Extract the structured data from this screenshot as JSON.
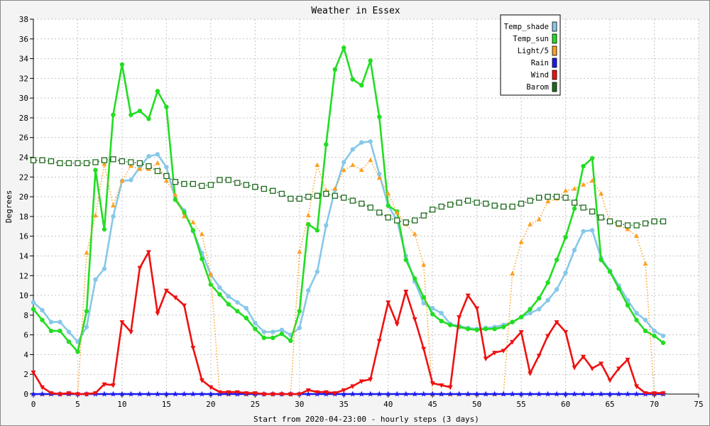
{
  "chart_data": {
    "type": "line",
    "title": "Weather in Essex",
    "xlabel": "Start from 2020-04-23:00 - hourly steps (3 days)",
    "ylabel": "Degrees",
    "xlim": [
      0,
      75
    ],
    "ylim": [
      0,
      38
    ],
    "xticks": [
      0,
      5,
      10,
      15,
      20,
      25,
      30,
      35,
      40,
      45,
      50,
      55,
      60,
      65,
      70,
      75
    ],
    "yticks": [
      0,
      2,
      4,
      6,
      8,
      10,
      12,
      14,
      16,
      18,
      20,
      22,
      24,
      26,
      28,
      30,
      32,
      34,
      36,
      38
    ],
    "grid": true,
    "legend_position": "top-right",
    "x": [
      0,
      1,
      2,
      3,
      4,
      5,
      6,
      7,
      8,
      9,
      10,
      11,
      12,
      13,
      14,
      15,
      16,
      17,
      18,
      19,
      20,
      21,
      22,
      23,
      24,
      25,
      26,
      27,
      28,
      29,
      30,
      31,
      32,
      33,
      34,
      35,
      36,
      37,
      38,
      39,
      40,
      41,
      42,
      43,
      44,
      45,
      46,
      47,
      48,
      49,
      50,
      51,
      52,
      53,
      54,
      55,
      56,
      57,
      58,
      59,
      60,
      61,
      62,
      63,
      64,
      65,
      66,
      67,
      68,
      69,
      70,
      71
    ],
    "series": [
      {
        "name": "Temp_shade",
        "color": "#87c8e8",
        "style": "solid",
        "marker": "dot",
        "values": [
          9.3,
          8.5,
          7.3,
          7.3,
          6.3,
          5.3,
          6.8,
          11.6,
          12.7,
          18.0,
          21.6,
          21.7,
          23.0,
          24.1,
          24.3,
          23.0,
          19.8,
          18.6,
          16.5,
          14.3,
          12.1,
          10.8,
          9.9,
          9.3,
          8.7,
          7.2,
          6.3,
          6.3,
          6.5,
          6.0,
          6.7,
          10.5,
          12.4,
          17.1,
          20.7,
          23.5,
          24.8,
          25.5,
          25.6,
          22.3,
          19.1,
          17.6,
          14.0,
          11.4,
          9.2,
          8.7,
          8.2,
          7.1,
          6.9,
          6.7,
          6.6,
          6.7,
          6.8,
          7.0,
          7.3,
          7.8,
          8.2,
          8.6,
          9.5,
          10.6,
          12.3,
          14.6,
          16.5,
          16.6,
          13.8,
          12.5,
          11.0,
          9.5,
          8.2,
          7.5,
          6.4,
          5.9
        ]
      },
      {
        "name": "Temp_sun",
        "color": "#22dd22",
        "style": "solid",
        "marker": "dot",
        "values": [
          8.6,
          7.5,
          6.4,
          6.4,
          5.3,
          4.3,
          8.4,
          22.7,
          16.7,
          28.3,
          33.4,
          28.3,
          28.7,
          27.9,
          30.7,
          29.1,
          19.7,
          18.4,
          16.6,
          13.7,
          11.1,
          10.1,
          9.1,
          8.4,
          7.7,
          6.6,
          5.7,
          5.7,
          6.1,
          5.4,
          8.4,
          17.2,
          16.6,
          25.3,
          32.9,
          35.1,
          31.9,
          31.3,
          33.8,
          28.1,
          19.1,
          18.5,
          13.6,
          11.7,
          9.8,
          8.1,
          7.4,
          7.0,
          6.8,
          6.6,
          6.5,
          6.6,
          6.6,
          6.8,
          7.3,
          7.8,
          8.6,
          9.7,
          11.3,
          13.6,
          15.9,
          18.8,
          23.1,
          23.9,
          13.6,
          12.4,
          10.7,
          9.0,
          7.5,
          6.4,
          5.9,
          5.2
        ]
      },
      {
        "name": "Light/5",
        "color": "#ffa020",
        "style": "dotted",
        "marker": "triangle-up",
        "values": [
          0,
          0,
          0,
          0,
          0,
          0,
          14.3,
          18.1,
          23.3,
          19.1,
          21.6,
          23.1,
          22.8,
          22.8,
          23.4,
          21.6,
          20.2,
          18.0,
          17.4,
          16.2,
          12.1,
          0,
          0,
          0,
          0,
          0,
          0,
          0,
          0,
          0,
          14.4,
          18.1,
          23.2,
          20.6,
          20.8,
          22.7,
          23.2,
          22.7,
          23.7,
          21.9,
          20.3,
          18.4,
          17.2,
          16.2,
          13.1,
          0,
          0,
          0,
          0,
          0,
          0,
          0,
          0,
          0,
          12.2,
          15.4,
          17.2,
          17.7,
          19.5,
          19.8,
          20.6,
          20.8,
          21.2,
          21.6,
          20.3,
          17.4,
          17.1,
          16.7,
          16.0,
          13.2,
          0,
          0
        ]
      },
      {
        "name": "Rain",
        "color": "#1a1aee",
        "style": "solid",
        "marker": "star",
        "values": [
          0,
          0,
          0,
          0,
          0,
          0,
          0,
          0,
          0,
          0,
          0,
          0,
          0,
          0,
          0,
          0,
          0,
          0,
          0,
          0,
          0,
          0,
          0,
          0,
          0,
          0,
          0,
          0,
          0,
          0,
          0,
          0,
          0,
          0,
          0,
          0,
          0,
          0,
          0,
          0,
          0,
          0,
          0,
          0,
          0,
          0,
          0,
          0,
          0,
          0,
          0,
          0,
          0,
          0,
          0,
          0,
          0,
          0,
          0,
          0,
          0,
          0,
          0,
          0,
          0,
          0,
          0,
          0,
          0,
          0,
          0,
          0
        ]
      },
      {
        "name": "Wind",
        "color": "#ee1111",
        "style": "solid",
        "marker": "triangle-down",
        "values": [
          2.2,
          0.7,
          0.1,
          0,
          0.1,
          0,
          0,
          0.1,
          1.0,
          0.9,
          7.3,
          6.3,
          12.8,
          14.4,
          8.2,
          10.5,
          9.8,
          9.0,
          4.7,
          1.4,
          0.7,
          0.2,
          0.2,
          0.2,
          0.1,
          0.1,
          0,
          0,
          0,
          0,
          0,
          0.4,
          0.2,
          0.2,
          0.1,
          0.4,
          0.8,
          1.3,
          1.5,
          5.4,
          9.3,
          7.1,
          10.4,
          7.6,
          4.6,
          1.1,
          0.9,
          0.7,
          7.8,
          10.0,
          8.7,
          3.6,
          4.2,
          4.4,
          5.3,
          6.3,
          2.1,
          3.9,
          5.9,
          7.3,
          6.3,
          2.7,
          3.8,
          2.6,
          3.1,
          1.4,
          2.6,
          3.5,
          0.8,
          0.1,
          0.1,
          0.1
        ]
      },
      {
        "name": "Barom",
        "color": "#1e6a1e",
        "style": "dotted",
        "marker": "square",
        "values": [
          23.7,
          23.7,
          23.6,
          23.4,
          23.4,
          23.4,
          23.4,
          23.5,
          23.7,
          23.8,
          23.6,
          23.5,
          23.4,
          23.1,
          22.6,
          22.1,
          21.5,
          21.3,
          21.3,
          21.1,
          21.2,
          21.7,
          21.7,
          21.4,
          21.2,
          21.0,
          20.8,
          20.6,
          20.3,
          19.8,
          19.8,
          20.0,
          20.1,
          20.3,
          20.1,
          19.9,
          19.6,
          19.3,
          18.9,
          18.4,
          17.9,
          17.6,
          17.4,
          17.6,
          18.1,
          18.7,
          19.0,
          19.2,
          19.4,
          19.6,
          19.4,
          19.3,
          19.1,
          19.0,
          19.0,
          19.3,
          19.6,
          19.9,
          20.0,
          20.0,
          19.9,
          19.4,
          18.9,
          18.5,
          17.9,
          17.5,
          17.3,
          17.1,
          17.1,
          17.3,
          17.5,
          17.5
        ]
      }
    ]
  }
}
